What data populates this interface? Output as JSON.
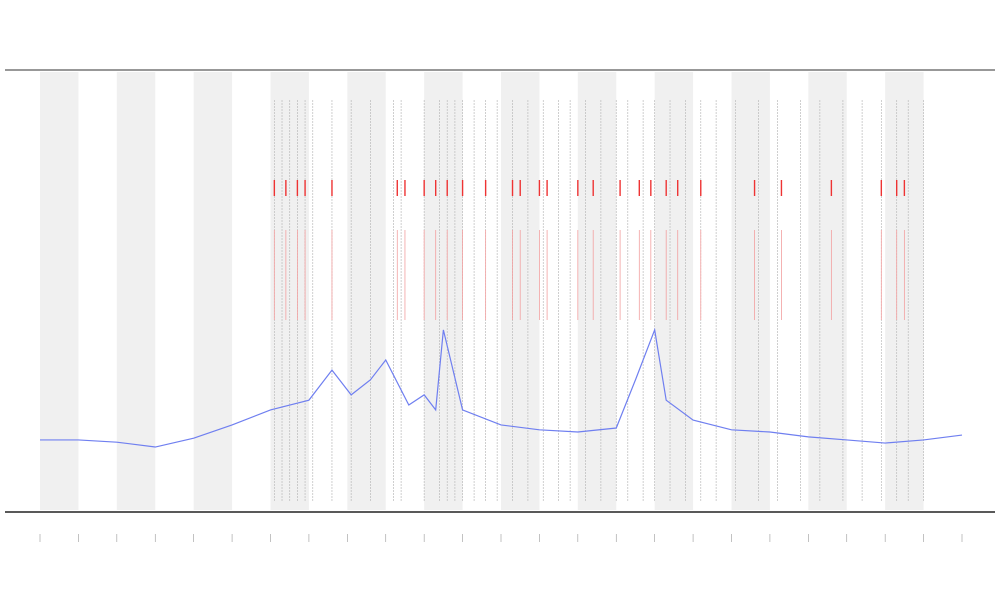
{
  "chart_data": {
    "type": "line",
    "x": [
      0,
      1,
      2,
      3,
      4,
      5,
      6,
      7,
      7.6,
      8.1,
      8.6,
      9,
      9.6,
      10,
      10.3,
      10.5,
      11,
      12,
      13,
      14,
      15,
      15.5,
      16,
      16.3,
      17,
      18,
      19,
      20,
      21,
      22,
      23,
      24
    ],
    "series": [
      {
        "color": "#6f7ff0",
        "values": [
          16.3,
          16.3,
          15.8,
          14.7,
          16.7,
          19.7,
          23.1,
          25.3,
          32.1,
          26.5,
          29.9,
          34.4,
          24.2,
          26.5,
          23.1,
          41.2,
          23.1,
          19.7,
          18.6,
          18.1,
          19.0,
          29.9,
          41.2,
          25.3,
          20.8,
          18.6,
          18.1,
          17.0,
          16.3,
          15.6,
          16.3,
          17.4
        ]
      }
    ],
    "markers": [
      6.1,
      6.3,
      6.5,
      6.7,
      6.9,
      7.1,
      7.6,
      8.1,
      8.6,
      9.2,
      9.4,
      10.0,
      10.4,
      10.6,
      10.8,
      11.0,
      11.3,
      11.6,
      11.9,
      12.3,
      12.7,
      13.1,
      13.5,
      13.8,
      14.2,
      14.6,
      15.0,
      15.3,
      15.7,
      16.0,
      16.4,
      16.8,
      17.2,
      17.6,
      18.1,
      18.7,
      19.2,
      19.8,
      20.3,
      20.9,
      21.4,
      21.9,
      22.3,
      22.6,
      23.0
    ],
    "hits": [
      6.1,
      6.4,
      6.7,
      6.9,
      7.6,
      9.3,
      9.5,
      10.0,
      10.3,
      10.6,
      11.0,
      11.6,
      12.3,
      12.5,
      13.0,
      13.2,
      14.0,
      14.4,
      15.1,
      15.6,
      15.9,
      16.3,
      16.6,
      17.2,
      18.6,
      19.3,
      20.6,
      21.9,
      22.3,
      22.5
    ],
    "xlim": [
      0,
      24
    ],
    "ylim": [
      0,
      100
    ]
  }
}
